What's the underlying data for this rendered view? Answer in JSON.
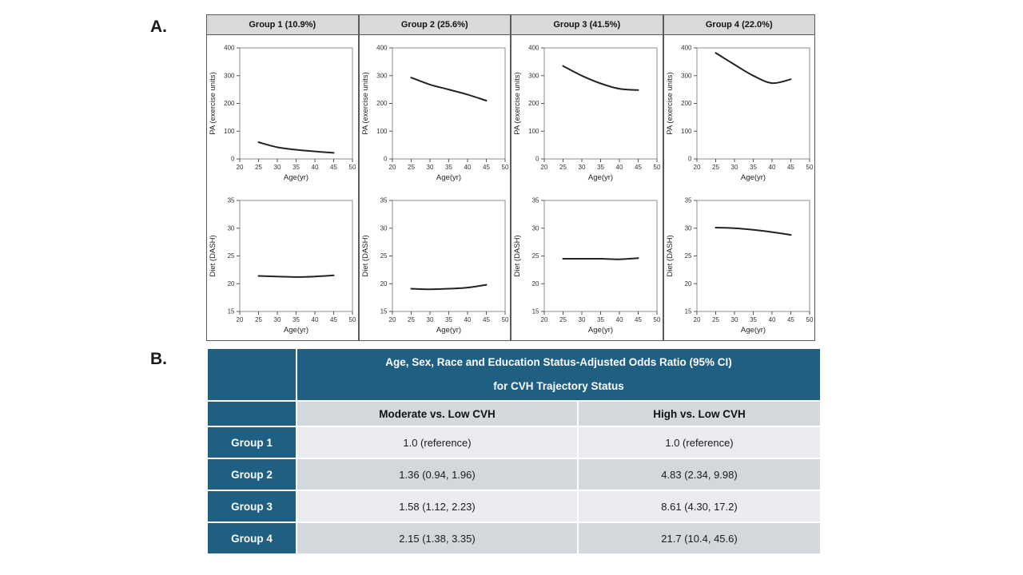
{
  "panels": {
    "a": "A.",
    "b": "B."
  },
  "chart_data": [
    {
      "type": "line",
      "group": "Group 1 (10.9%)",
      "measure": "PA",
      "xlabel": "Age(yr)",
      "ylabel": "PA (exercise units)",
      "x": [
        25,
        30,
        35,
        40,
        45
      ],
      "y": [
        60,
        42,
        33,
        27,
        22
      ],
      "xlim": [
        20,
        50
      ],
      "ylim": [
        0,
        400
      ],
      "xticks": [
        20,
        25,
        30,
        35,
        40,
        45,
        50
      ],
      "yticks": [
        0,
        100,
        200,
        300,
        400
      ]
    },
    {
      "type": "line",
      "group": "Group 2 (25.6%)",
      "measure": "PA",
      "xlabel": "Age(yr)",
      "ylabel": "PA (exercise units)",
      "x": [
        25,
        30,
        35,
        40,
        45
      ],
      "y": [
        293,
        268,
        250,
        232,
        210
      ],
      "xlim": [
        20,
        50
      ],
      "ylim": [
        0,
        400
      ],
      "xticks": [
        20,
        25,
        30,
        35,
        40,
        45,
        50
      ],
      "yticks": [
        0,
        100,
        200,
        300,
        400
      ]
    },
    {
      "type": "line",
      "group": "Group 3 (41.5%)",
      "measure": "PA",
      "xlabel": "Age(yr)",
      "ylabel": "PA (exercise units)",
      "x": [
        25,
        30,
        35,
        40,
        45
      ],
      "y": [
        335,
        300,
        272,
        253,
        248
      ],
      "xlim": [
        20,
        50
      ],
      "ylim": [
        0,
        400
      ],
      "xticks": [
        20,
        25,
        30,
        35,
        40,
        45,
        50
      ],
      "yticks": [
        0,
        100,
        200,
        300,
        400
      ]
    },
    {
      "type": "line",
      "group": "Group 4 (22.0%)",
      "measure": "PA",
      "xlabel": "Age(yr)",
      "ylabel": "PA (exercise units)",
      "x": [
        25,
        30,
        35,
        40,
        45
      ],
      "y": [
        382,
        340,
        300,
        273,
        287
      ],
      "xlim": [
        20,
        50
      ],
      "ylim": [
        0,
        400
      ],
      "xticks": [
        20,
        25,
        30,
        35,
        40,
        45,
        50
      ],
      "yticks": [
        0,
        100,
        200,
        300,
        400
      ]
    },
    {
      "type": "line",
      "group": "Group 1 (10.9%)",
      "measure": "Diet",
      "xlabel": "Age(yr)",
      "ylabel": "Diet (DASH)",
      "x": [
        25,
        30,
        35,
        40,
        45
      ],
      "y": [
        21.4,
        21.3,
        21.2,
        21.3,
        21.5
      ],
      "xlim": [
        20,
        50
      ],
      "ylim": [
        15,
        35
      ],
      "xticks": [
        20,
        25,
        30,
        35,
        40,
        45,
        50
      ],
      "yticks": [
        15,
        20,
        25,
        30,
        35
      ]
    },
    {
      "type": "line",
      "group": "Group 2 (25.6%)",
      "measure": "Diet",
      "xlabel": "Age(yr)",
      "ylabel": "Diet (DASH)",
      "x": [
        25,
        30,
        35,
        40,
        45
      ],
      "y": [
        19.1,
        19.0,
        19.1,
        19.3,
        19.8
      ],
      "xlim": [
        20,
        50
      ],
      "ylim": [
        15,
        35
      ],
      "xticks": [
        20,
        25,
        30,
        35,
        40,
        45,
        50
      ],
      "yticks": [
        15,
        20,
        25,
        30,
        35
      ]
    },
    {
      "type": "line",
      "group": "Group 3 (41.5%)",
      "measure": "Diet",
      "xlabel": "Age(yr)",
      "ylabel": "Diet (DASH)",
      "x": [
        25,
        30,
        35,
        40,
        45
      ],
      "y": [
        24.5,
        24.5,
        24.5,
        24.4,
        24.6
      ],
      "xlim": [
        20,
        50
      ],
      "ylim": [
        15,
        35
      ],
      "xticks": [
        20,
        25,
        30,
        35,
        40,
        45,
        50
      ],
      "yticks": [
        15,
        20,
        25,
        30,
        35
      ]
    },
    {
      "type": "line",
      "group": "Group 4 (22.0%)",
      "measure": "Diet",
      "xlabel": "Age(yr)",
      "ylabel": "Diet (DASH)",
      "x": [
        25,
        30,
        35,
        40,
        45
      ],
      "y": [
        30.1,
        30.0,
        29.7,
        29.3,
        28.8
      ],
      "xlim": [
        20,
        50
      ],
      "ylim": [
        15,
        35
      ],
      "xticks": [
        20,
        25,
        30,
        35,
        40,
        45,
        50
      ],
      "yticks": [
        15,
        20,
        25,
        30,
        35
      ]
    },
    {
      "type": "table",
      "header_line1": "Age, Sex, Race and Education Status-Adjusted Odds Ratio (95% CI)",
      "header_line2": "for CVH Trajectory Status",
      "columns": [
        "",
        "Moderate vs. Low CVH",
        "High vs. Low CVH"
      ],
      "rows": [
        {
          "label": "Group 1",
          "moderate": "1.0 (reference)",
          "high": "1.0 (reference)"
        },
        {
          "label": "Group 2",
          "moderate": "1.36 (0.94, 1.96)",
          "high": "4.83 (2.34, 9.98)"
        },
        {
          "label": "Group 3",
          "moderate": "1.58 (1.12, 2.23)",
          "high": "8.61 (4.30, 17.2)"
        },
        {
          "label": "Group 4",
          "moderate": "2.15 (1.38, 3.35)",
          "high": "21.7 (10.4, 45.6)"
        }
      ]
    }
  ],
  "colors": {
    "teal": "#1E5F82",
    "row_light": "#EAECEF",
    "row_dark": "#D4D7DC",
    "chart_header_gray": "#D9D9D9",
    "curve": "#222222"
  }
}
